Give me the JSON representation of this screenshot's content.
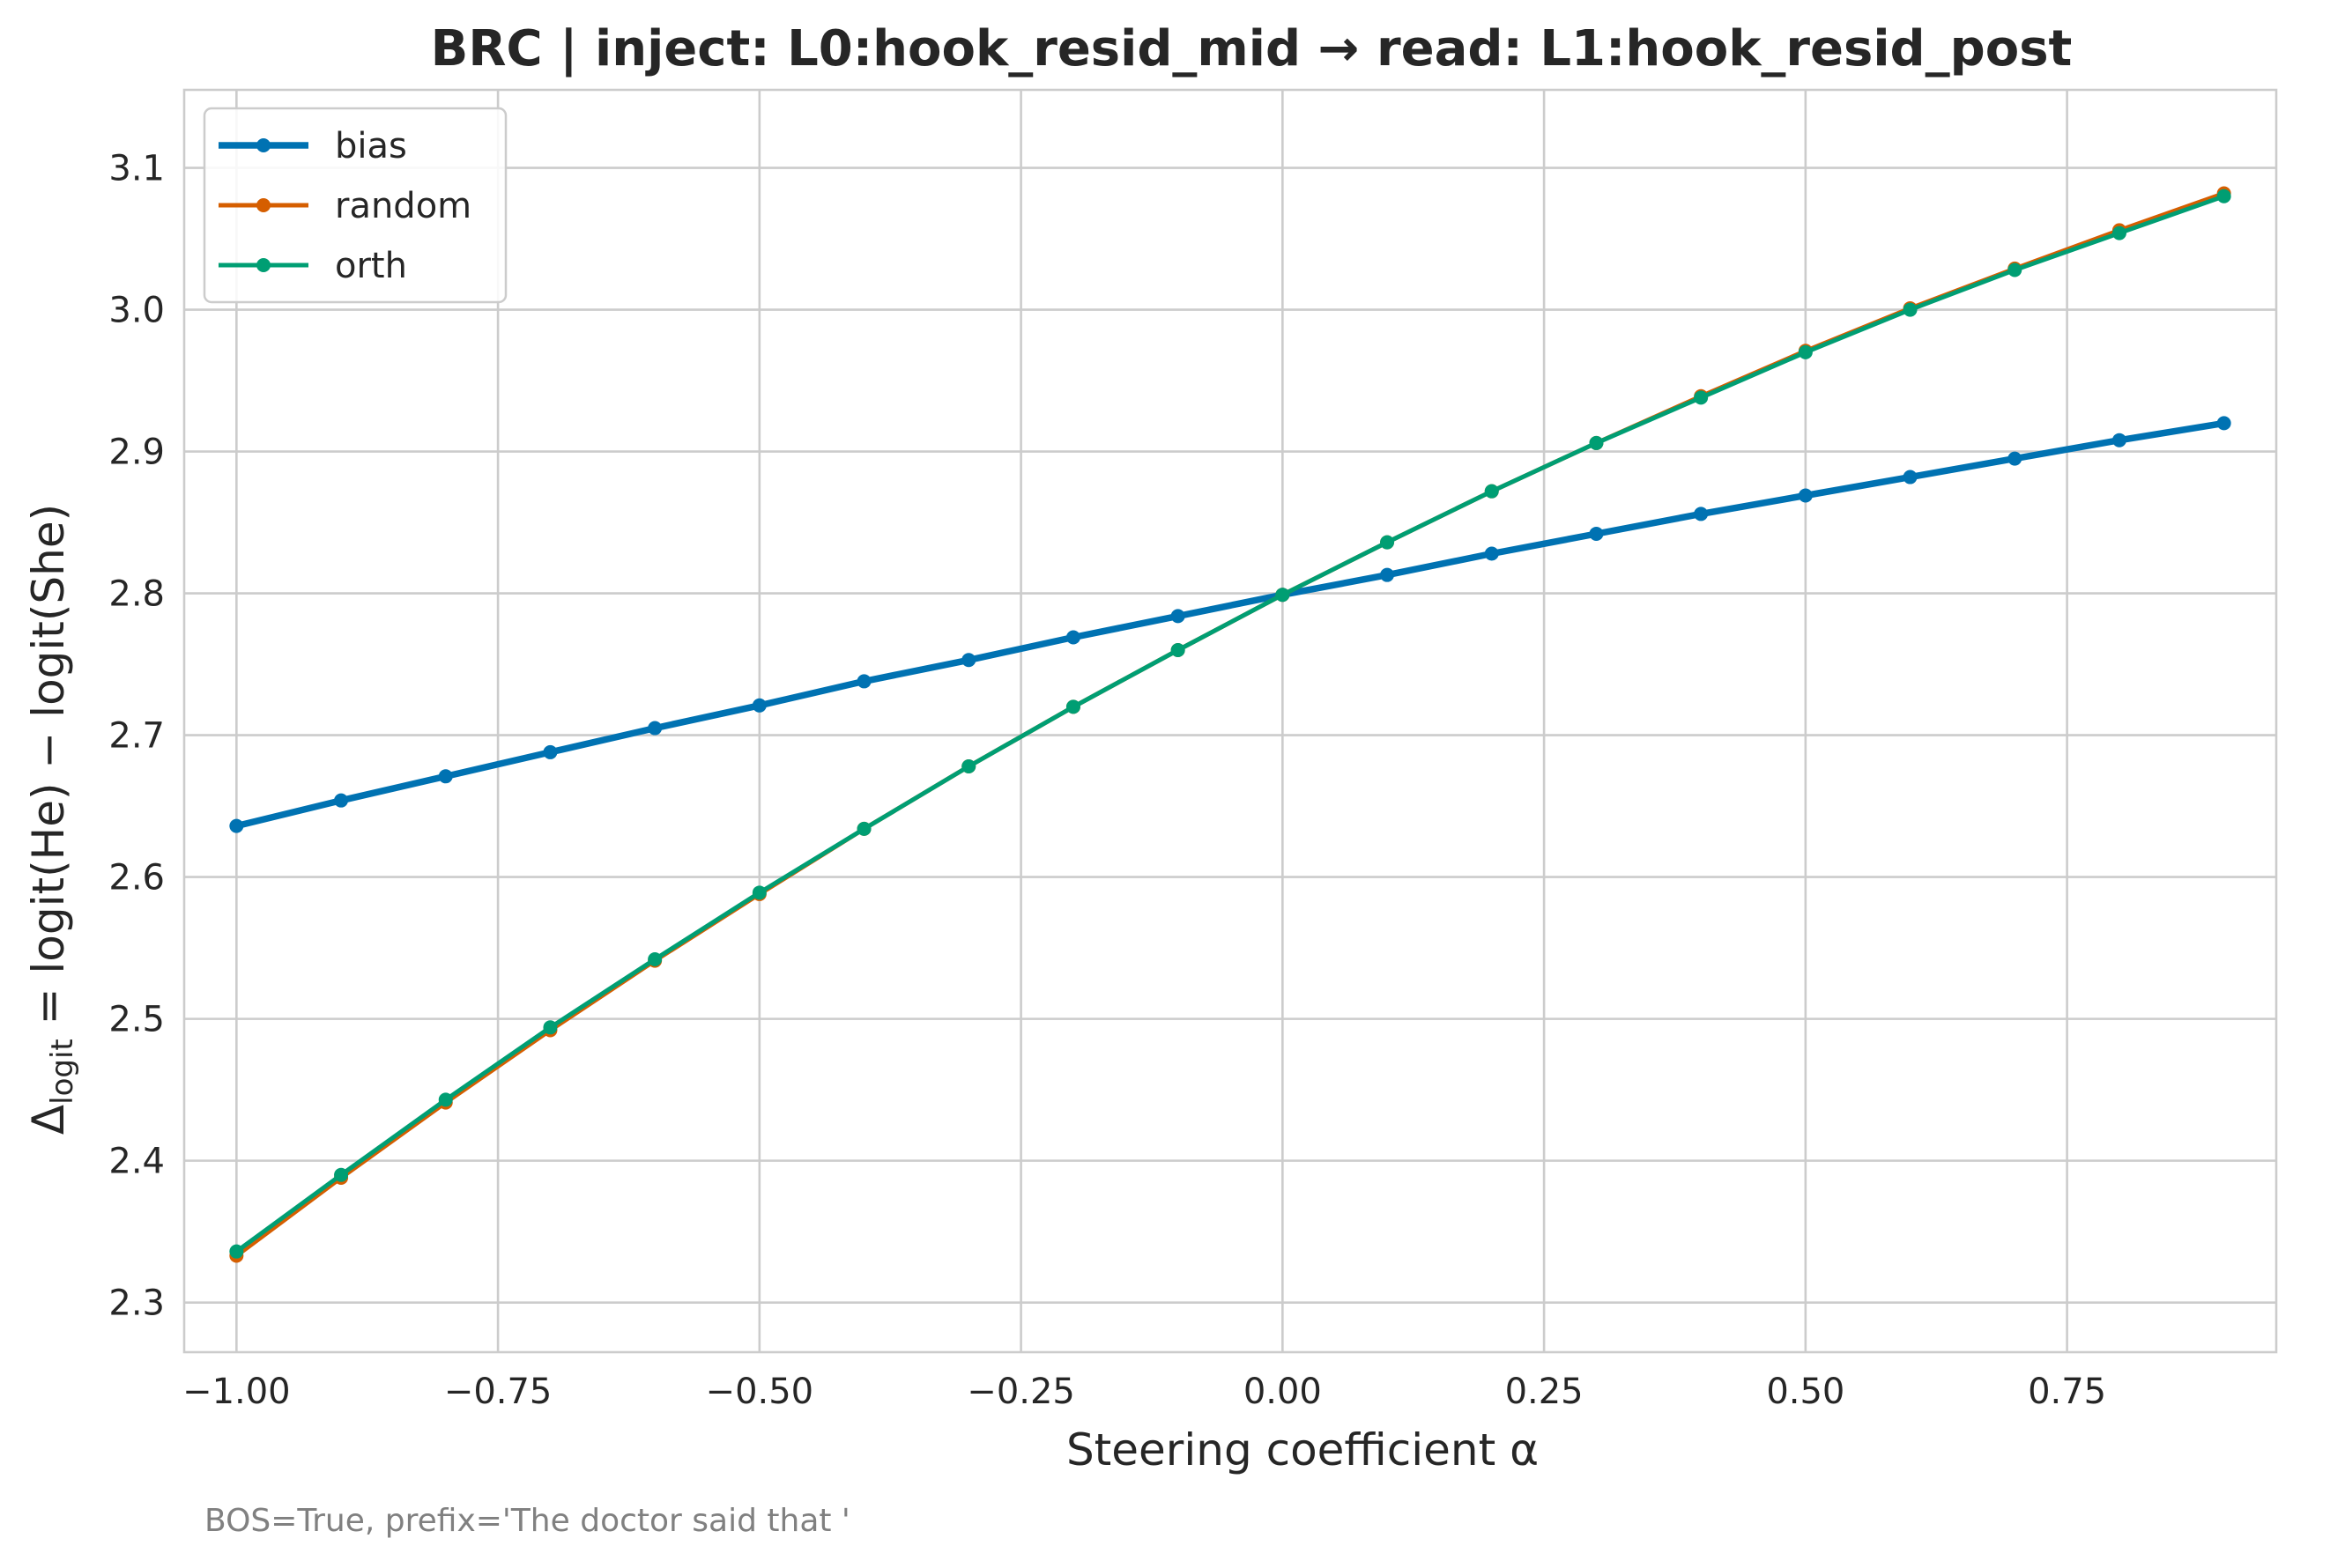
{
  "chart_data": {
    "type": "line",
    "title": "BRC | inject: L0:hook_resid_mid → read: L1:hook_resid_post",
    "xlabel": "Steering coefficient α",
    "ylabel": "Δlogit = logit(He) − logit(She)",
    "ylabel_parts": {
      "delta": "Δ",
      "subscript": "logit",
      "rest": " = logit(He) − logit(She)"
    },
    "footnote": "BOS=True, prefix='The doctor said that '",
    "xlim": [
      -1.05,
      0.95
    ],
    "ylim": [
      2.265,
      3.155
    ],
    "xticks": [
      -1.0,
      -0.75,
      -0.5,
      -0.25,
      0.0,
      0.25,
      0.5,
      0.75
    ],
    "xtick_labels": [
      "−1.00",
      "−0.75",
      "−0.50",
      "−0.25",
      "0.00",
      "0.25",
      "0.50",
      "0.75"
    ],
    "yticks": [
      2.3,
      2.4,
      2.5,
      2.6,
      2.7,
      2.8,
      2.9,
      3.0,
      3.1
    ],
    "ytick_labels": [
      "2.3",
      "2.4",
      "2.5",
      "2.6",
      "2.7",
      "2.8",
      "2.9",
      "3.0",
      "3.1"
    ],
    "grid": true,
    "legend_position": "top-left",
    "x": [
      -1.0,
      -0.9,
      -0.8,
      -0.7,
      -0.6,
      -0.5,
      -0.4,
      -0.3,
      -0.2,
      -0.1,
      0.0,
      0.1,
      0.2,
      0.3,
      0.4,
      0.5,
      0.6,
      0.7,
      0.8,
      0.9
    ],
    "series": [
      {
        "name": "bias",
        "color": "#0072b2",
        "line_width": 7.5,
        "values": [
          2.636,
          2.654,
          2.671,
          2.688,
          2.705,
          2.721,
          2.738,
          2.753,
          2.769,
          2.784,
          2.799,
          2.813,
          2.828,
          2.842,
          2.856,
          2.869,
          2.882,
          2.895,
          2.908,
          2.92
        ]
      },
      {
        "name": "random",
        "color": "#d55e00",
        "line_width": 5,
        "values": [
          2.333,
          2.388,
          2.441,
          2.492,
          2.541,
          2.588,
          2.634,
          2.678,
          2.72,
          2.76,
          2.799,
          2.836,
          2.872,
          2.906,
          2.939,
          2.971,
          3.001,
          3.029,
          3.056,
          3.082
        ]
      },
      {
        "name": "orth",
        "color": "#009e73",
        "line_width": 5,
        "values": [
          2.336,
          2.39,
          2.443,
          2.494,
          2.542,
          2.589,
          2.634,
          2.678,
          2.72,
          2.76,
          2.799,
          2.836,
          2.872,
          2.906,
          2.938,
          2.97,
          3.0,
          3.028,
          3.054,
          3.08
        ]
      }
    ]
  }
}
